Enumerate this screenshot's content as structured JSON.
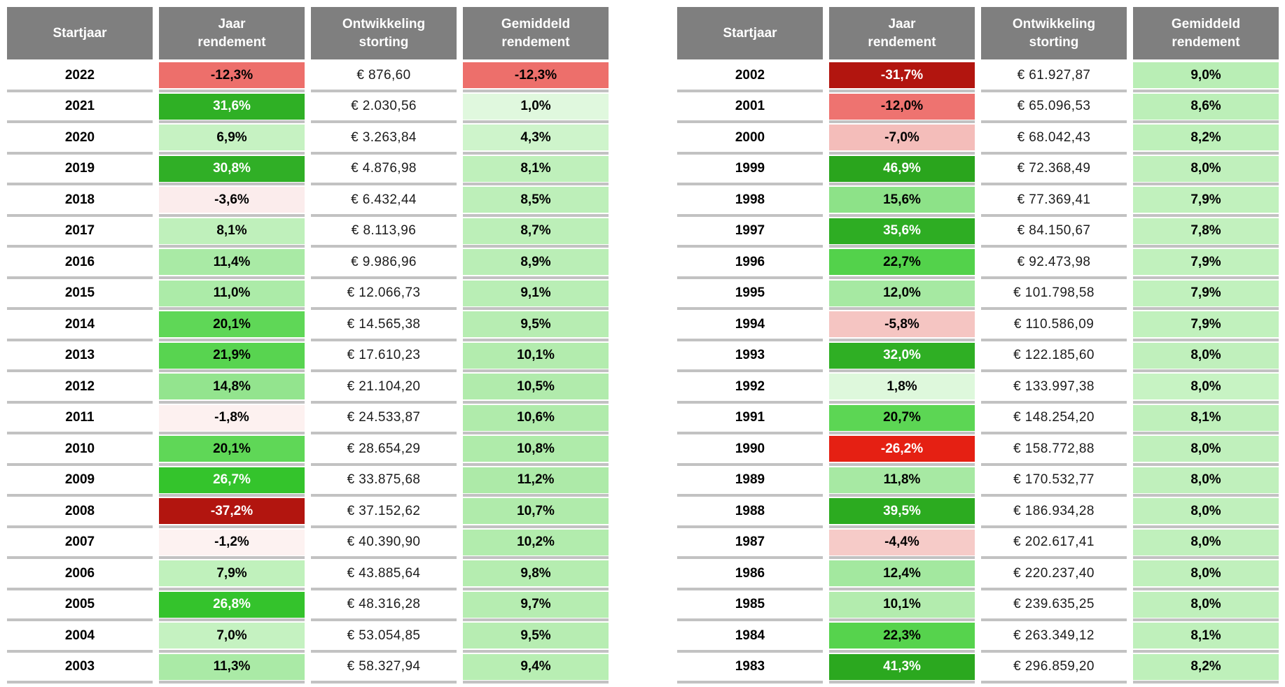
{
  "colors": {
    "header_bg": "#7f7f7f",
    "header_fg": "#ffffff",
    "separator": "#c2c2c2",
    "page_bg": "#ffffff",
    "strong_negative": "#b2150f",
    "strong_positive": "#2aa51d"
  },
  "chart_data": [
    {
      "type": "table",
      "columns": [
        "Startjaar",
        "Jaar\nrendement",
        "Ontwikkeling\nstorting",
        "Gemiddeld\nrendement"
      ],
      "rows": [
        {
          "year": "2022",
          "jaar": "-12,3%",
          "jaar_bg": "#ed6f6b",
          "jaar_fg": "#000000",
          "storting": "€ 876,60",
          "gem": "-12,3%",
          "gem_bg": "#ed6f6b"
        },
        {
          "year": "2021",
          "jaar": "31,6%",
          "jaar_bg": "#2fb025",
          "jaar_fg": "#ffffff",
          "storting": "€ 2.030,56",
          "gem": "1,0%",
          "gem_bg": "#e0f8de"
        },
        {
          "year": "2020",
          "jaar": "6,9%",
          "jaar_bg": "#c6f2c2",
          "jaar_fg": "#000000",
          "storting": "€ 3.263,84",
          "gem": "4,3%",
          "gem_bg": "#cef4cb"
        },
        {
          "year": "2019",
          "jaar": "30,8%",
          "jaar_bg": "#30af26",
          "jaar_fg": "#ffffff",
          "storting": "€ 4.876,98",
          "gem": "8,1%",
          "gem_bg": "#bff0bb"
        },
        {
          "year": "2018",
          "jaar": "-3,6%",
          "jaar_bg": "#fbecec",
          "jaar_fg": "#000000",
          "storting": "€ 6.432,44",
          "gem": "8,5%",
          "gem_bg": "#bdefb9"
        },
        {
          "year": "2017",
          "jaar": "8,1%",
          "jaar_bg": "#bff0bb",
          "jaar_fg": "#000000",
          "storting": "€ 8.113,96",
          "gem": "8,7%",
          "gem_bg": "#bcefb8"
        },
        {
          "year": "2016",
          "jaar": "11,4%",
          "jaar_bg": "#a9eaa5",
          "jaar_fg": "#000000",
          "storting": "€ 9.986,96",
          "gem": "8,9%",
          "gem_bg": "#baeeb6"
        },
        {
          "year": "2015",
          "jaar": "11,0%",
          "jaar_bg": "#aceba8",
          "jaar_fg": "#000000",
          "storting": "€ 12.066,73",
          "gem": "9,1%",
          "gem_bg": "#b9eeb5"
        },
        {
          "year": "2014",
          "jaar": "20,1%",
          "jaar_bg": "#5fd757",
          "jaar_fg": "#000000",
          "storting": "€ 14.565,38",
          "gem": "9,5%",
          "gem_bg": "#b7edb2"
        },
        {
          "year": "2013",
          "jaar": "21,9%",
          "jaar_bg": "#58d450",
          "jaar_fg": "#000000",
          "storting": "€ 17.610,23",
          "gem": "10,1%",
          "gem_bg": "#b3ecae"
        },
        {
          "year": "2012",
          "jaar": "14,8%",
          "jaar_bg": "#93e48e",
          "jaar_fg": "#000000",
          "storting": "€ 21.104,20",
          "gem": "10,5%",
          "gem_bg": "#b1ebac"
        },
        {
          "year": "2011",
          "jaar": "-1,8%",
          "jaar_bg": "#fdf1f0",
          "jaar_fg": "#000000",
          "storting": "€ 24.533,87",
          "gem": "10,6%",
          "gem_bg": "#b0ebab"
        },
        {
          "year": "2010",
          "jaar": "20,1%",
          "jaar_bg": "#5fd757",
          "jaar_fg": "#000000",
          "storting": "€ 28.654,29",
          "gem": "10,8%",
          "gem_bg": "#afebaa"
        },
        {
          "year": "2009",
          "jaar": "26,7%",
          "jaar_bg": "#34c42c",
          "jaar_fg": "#ffffff",
          "storting": "€ 33.875,68",
          "gem": "11,2%",
          "gem_bg": "#adeaa8"
        },
        {
          "year": "2008",
          "jaar": "-37,2%",
          "jaar_bg": "#b2150f",
          "jaar_fg": "#ffffff",
          "storting": "€ 37.152,62",
          "gem": "10,7%",
          "gem_bg": "#b0ebab"
        },
        {
          "year": "2007",
          "jaar": "-1,2%",
          "jaar_bg": "#fdf2f1",
          "jaar_fg": "#000000",
          "storting": "€ 40.390,90",
          "gem": "10,2%",
          "gem_bg": "#b2ecad"
        },
        {
          "year": "2006",
          "jaar": "7,9%",
          "jaar_bg": "#c0f1bc",
          "jaar_fg": "#000000",
          "storting": "€ 43.885,64",
          "gem": "9,8%",
          "gem_bg": "#b5edb0"
        },
        {
          "year": "2005",
          "jaar": "26,8%",
          "jaar_bg": "#34c32c",
          "jaar_fg": "#ffffff",
          "storting": "€ 48.316,28",
          "gem": "9,7%",
          "gem_bg": "#b6edb1"
        },
        {
          "year": "2004",
          "jaar": "7,0%",
          "jaar_bg": "#c5f2c1",
          "jaar_fg": "#000000",
          "storting": "€ 53.054,85",
          "gem": "9,5%",
          "gem_bg": "#b7edb2"
        },
        {
          "year": "2003",
          "jaar": "11,3%",
          "jaar_bg": "#aaeaa6",
          "jaar_fg": "#000000",
          "storting": "€ 58.327,94",
          "gem": "9,4%",
          "gem_bg": "#b8eeb3"
        }
      ]
    },
    {
      "type": "table",
      "columns": [
        "Startjaar",
        "Jaar\nrendement",
        "Ontwikkeling\nstorting",
        "Gemiddeld\nrendement"
      ],
      "rows": [
        {
          "year": "2002",
          "jaar": "-31,7%",
          "jaar_bg": "#b2150f",
          "jaar_fg": "#ffffff",
          "storting": "€ 61.927,87",
          "gem": "9,0%",
          "gem_bg": "#b9eeb5"
        },
        {
          "year": "2001",
          "jaar": "-12,0%",
          "jaar_bg": "#ee7370",
          "jaar_fg": "#000000",
          "storting": "€ 65.096,53",
          "gem": "8,6%",
          "gem_bg": "#bcefb8"
        },
        {
          "year": "2000",
          "jaar": "-7,0%",
          "jaar_bg": "#f4bdba",
          "jaar_fg": "#000000",
          "storting": "€ 68.042,43",
          "gem": "8,2%",
          "gem_bg": "#bef0ba"
        },
        {
          "year": "1999",
          "jaar": "46,9%",
          "jaar_bg": "#2aa51d",
          "jaar_fg": "#ffffff",
          "storting": "€ 72.368,49",
          "gem": "8,0%",
          "gem_bg": "#c0f0bc"
        },
        {
          "year": "1998",
          "jaar": "15,6%",
          "jaar_bg": "#8de288",
          "jaar_fg": "#000000",
          "storting": "€ 77.369,41",
          "gem": "7,9%",
          "gem_bg": "#c1f1bd"
        },
        {
          "year": "1997",
          "jaar": "35,6%",
          "jaar_bg": "#2ead23",
          "jaar_fg": "#ffffff",
          "storting": "€ 84.150,67",
          "gem": "7,8%",
          "gem_bg": "#c2f1be"
        },
        {
          "year": "1996",
          "jaar": "22,7%",
          "jaar_bg": "#53d24b",
          "jaar_fg": "#000000",
          "storting": "€ 92.473,98",
          "gem": "7,9%",
          "gem_bg": "#c1f1bd"
        },
        {
          "year": "1995",
          "jaar": "12,0%",
          "jaar_bg": "#a6e9a2",
          "jaar_fg": "#000000",
          "storting": "€ 101.798,58",
          "gem": "7,9%",
          "gem_bg": "#c1f1bd"
        },
        {
          "year": "1994",
          "jaar": "-5,8%",
          "jaar_bg": "#f5c5c2",
          "jaar_fg": "#000000",
          "storting": "€ 110.586,09",
          "gem": "7,9%",
          "gem_bg": "#c1f1bd"
        },
        {
          "year": "1993",
          "jaar": "32,0%",
          "jaar_bg": "#2faf24",
          "jaar_fg": "#ffffff",
          "storting": "€ 122.185,60",
          "gem": "8,0%",
          "gem_bg": "#c0f0bc"
        },
        {
          "year": "1992",
          "jaar": "1,8%",
          "jaar_bg": "#def8dc",
          "jaar_fg": "#000000",
          "storting": "€ 133.997,38",
          "gem": "8,0%",
          "gem_bg": "#c7f3c3"
        },
        {
          "year": "1991",
          "jaar": "20,7%",
          "jaar_bg": "#5cd654",
          "jaar_fg": "#000000",
          "storting": "€ 148.254,20",
          "gem": "8,1%",
          "gem_bg": "#bff0bb"
        },
        {
          "year": "1990",
          "jaar": "-26,2%",
          "jaar_bg": "#e52013",
          "jaar_fg": "#ffffff",
          "storting": "€ 158.772,88",
          "gem": "8,0%",
          "gem_bg": "#c0f0bc"
        },
        {
          "year": "1989",
          "jaar": "11,8%",
          "jaar_bg": "#a7e9a3",
          "jaar_fg": "#000000",
          "storting": "€ 170.532,77",
          "gem": "8,0%",
          "gem_bg": "#c0f0bc"
        },
        {
          "year": "1988",
          "jaar": "39,5%",
          "jaar_bg": "#2cab20",
          "jaar_fg": "#ffffff",
          "storting": "€ 186.934,28",
          "gem": "8,0%",
          "gem_bg": "#c0f0bc"
        },
        {
          "year": "1987",
          "jaar": "-4,4%",
          "jaar_bg": "#f6cbc8",
          "jaar_fg": "#000000",
          "storting": "€ 202.617,41",
          "gem": "8,0%",
          "gem_bg": "#c0f0bc"
        },
        {
          "year": "1986",
          "jaar": "12,4%",
          "jaar_bg": "#a3e89f",
          "jaar_fg": "#000000",
          "storting": "€ 220.237,40",
          "gem": "8,0%",
          "gem_bg": "#c0f0bc"
        },
        {
          "year": "1985",
          "jaar": "10,1%",
          "jaar_bg": "#b3ecae",
          "jaar_fg": "#000000",
          "storting": "€ 239.635,25",
          "gem": "8,0%",
          "gem_bg": "#c0f0bc"
        },
        {
          "year": "1984",
          "jaar": "22,3%",
          "jaar_bg": "#56d34d",
          "jaar_fg": "#000000",
          "storting": "€ 263.349,12",
          "gem": "8,1%",
          "gem_bg": "#bff0bb"
        },
        {
          "year": "1983",
          "jaar": "41,3%",
          "jaar_bg": "#2ba81f",
          "jaar_fg": "#ffffff",
          "storting": "€ 296.859,20",
          "gem": "8,2%",
          "gem_bg": "#bef0ba"
        }
      ]
    }
  ]
}
